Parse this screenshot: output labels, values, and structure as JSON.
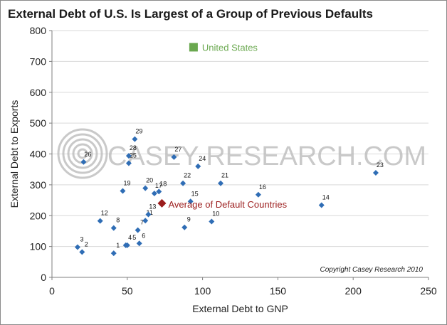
{
  "title": "External Debt of U.S. Is Largest of a Group of Previous Defaults",
  "copyright": "Copyright Casey Research 2010",
  "watermark": {
    "text_a": "CASEY",
    "text_b": "RESEARCH",
    "text_c": ".COM",
    "color": "#b7b7b7"
  },
  "colors": {
    "series": "#2f6db5",
    "us": "#6aa84f",
    "average": "#9b1c1c",
    "grid": "#d9d9d9",
    "axis": "#7f7f7f"
  },
  "chart_data": {
    "type": "scatter",
    "xlabel": "External Debt to GNP",
    "ylabel": "External Debt to Exports",
    "xlim": [
      0,
      250
    ],
    "ylim": [
      0,
      800
    ],
    "xticks": [
      0,
      50,
      100,
      150,
      200,
      250
    ],
    "yticks": [
      0,
      100,
      200,
      300,
      400,
      500,
      600,
      700,
      800
    ],
    "grid": "horizontal",
    "series": [
      {
        "name": "",
        "marker": "diamond",
        "points": [
          {
            "label": "1",
            "x": 41,
            "y": 78
          },
          {
            "label": "2",
            "x": 20,
            "y": 82
          },
          {
            "label": "3",
            "x": 17,
            "y": 98
          },
          {
            "label": "4",
            "x": 49,
            "y": 104
          },
          {
            "label": "5",
            "x": 50,
            "y": 104
          },
          {
            "label": "6",
            "x": 58,
            "y": 110
          },
          {
            "label": "7",
            "x": 57,
            "y": 153
          },
          {
            "label": "8",
            "x": 41,
            "y": 160
          },
          {
            "label": "9",
            "x": 88,
            "y": 162
          },
          {
            "label": "10",
            "x": 106,
            "y": 181
          },
          {
            "label": "11",
            "x": 62,
            "y": 184
          },
          {
            "label": "12",
            "x": 32,
            "y": 183
          },
          {
            "label": "13",
            "x": 64,
            "y": 204
          },
          {
            "label": "14",
            "x": 179,
            "y": 234
          },
          {
            "label": "15",
            "x": 92,
            "y": 246
          },
          {
            "label": "16",
            "x": 137,
            "y": 268
          },
          {
            "label": "17",
            "x": 68,
            "y": 272
          },
          {
            "label": "18",
            "x": 71,
            "y": 278
          },
          {
            "label": "19",
            "x": 47,
            "y": 280
          },
          {
            "label": "20",
            "x": 62,
            "y": 289
          },
          {
            "label": "21",
            "x": 112,
            "y": 305
          },
          {
            "label": "22",
            "x": 87,
            "y": 305
          },
          {
            "label": "23",
            "x": 215,
            "y": 339
          },
          {
            "label": "24",
            "x": 97,
            "y": 360
          },
          {
            "label": "25",
            "x": 51,
            "y": 370
          },
          {
            "label": "26",
            "x": 21,
            "y": 374
          },
          {
            "label": "27",
            "x": 81,
            "y": 390
          },
          {
            "label": "28",
            "x": 51,
            "y": 394
          },
          {
            "label": "29",
            "x": 55,
            "y": 448
          }
        ]
      },
      {
        "name": "United States",
        "marker": "square",
        "points": [
          {
            "x": 94,
            "y": 746
          }
        ]
      },
      {
        "name": "Average of Default Countries",
        "marker": "diamond-large",
        "points": [
          {
            "x": 73,
            "y": 240
          }
        ]
      }
    ]
  }
}
